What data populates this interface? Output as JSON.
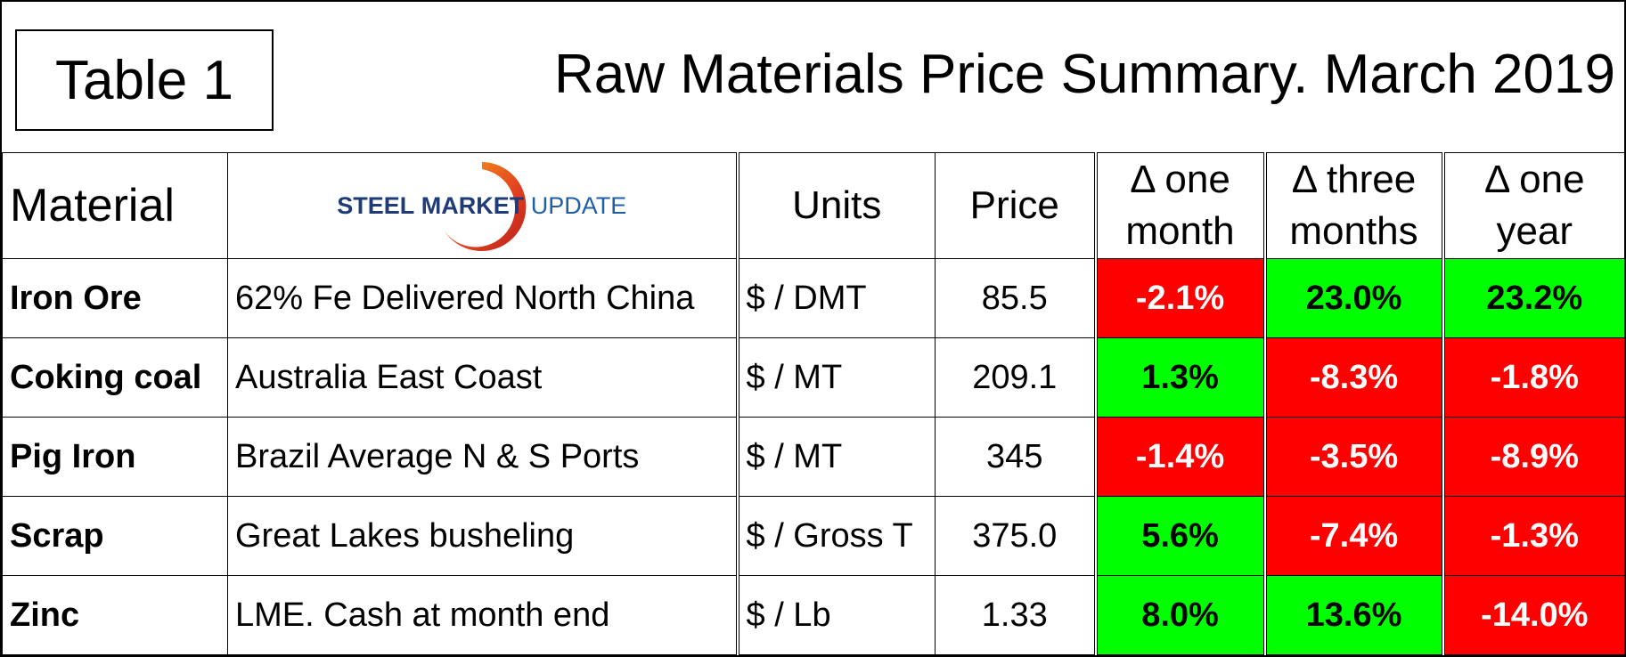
{
  "label": "Table 1",
  "title": "Raw Materials Price Summary. March 2019",
  "logo": {
    "word1": "STEEL",
    "word2": "MARKET",
    "word3": "UPDATE"
  },
  "colors": {
    "positive": "#00ff00",
    "negative": "#ff0000"
  },
  "headers": {
    "material": "Material",
    "units": "Units",
    "price": "Price",
    "month1_line1": "Δ one",
    "month1_line2": "month",
    "month3_line1": "Δ three",
    "month3_line2": "months",
    "year1_line1": "Δ one",
    "year1_line2": "year"
  },
  "rows": [
    {
      "material": "Iron Ore",
      "description": "62% Fe Delivered North China",
      "units": "$ / DMT",
      "price": "85.5",
      "one_month": "-2.1%",
      "three_months": "23.0%",
      "one_year": "23.2%"
    },
    {
      "material": "Coking coal",
      "description": "Australia East Coast",
      "units": "$ / MT",
      "price": "209.1",
      "one_month": "1.3%",
      "three_months": "-8.3%",
      "one_year": "-1.8%"
    },
    {
      "material": "Pig Iron",
      "description": "Brazil Average N & S Ports",
      "units": "$ / MT",
      "price": "345",
      "one_month": "-1.4%",
      "three_months": "-3.5%",
      "one_year": "-8.9%"
    },
    {
      "material": "Scrap",
      "description": "Great Lakes busheling",
      "units": "$ / Gross T",
      "price": "375.0",
      "one_month": "5.6%",
      "three_months": "-7.4%",
      "one_year": "-1.3%"
    },
    {
      "material": "Zinc",
      "description": "LME. Cash at month end",
      "units": "$ / Lb",
      "price": "1.33",
      "one_month": "8.0%",
      "three_months": "13.6%",
      "one_year": "-14.0%"
    }
  ]
}
